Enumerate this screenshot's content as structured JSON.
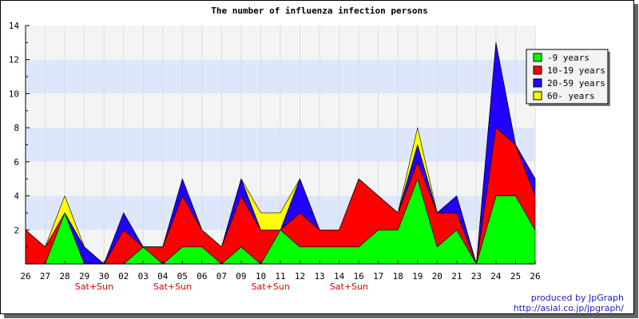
{
  "chart_data": {
    "type": "area",
    "stacked": true,
    "title": "The number of influenza infection persons",
    "categories": [
      "26",
      "27",
      "28",
      "29",
      "30",
      "02",
      "03",
      "04",
      "05",
      "06",
      "07",
      "09",
      "10",
      "11",
      "12",
      "13",
      "14",
      "16",
      "17",
      "18",
      "19",
      "20",
      "21",
      "23",
      "24",
      "25",
      "26"
    ],
    "weekend_markers": [
      {
        "after": "29",
        "label": "Sat+Sun"
      },
      {
        "after": "04",
        "label": "Sat+Sun"
      },
      {
        "after": "10",
        "label": "Sat+Sun"
      },
      {
        "after": "14",
        "label": "Sat+Sun"
      }
    ],
    "ylim": [
      0,
      14
    ],
    "yticks": [
      2,
      4,
      6,
      8,
      10,
      12,
      14
    ],
    "grid": true,
    "legend_position": "top-right",
    "series": [
      {
        "name": "-9 years",
        "color": "#00ff00",
        "values": [
          0,
          0,
          3,
          0,
          0,
          0,
          1,
          0,
          1,
          1,
          0,
          1,
          0,
          2,
          1,
          1,
          1,
          1,
          2,
          2,
          5,
          1,
          2,
          0,
          4,
          4,
          2
        ]
      },
      {
        "name": "10-19 years",
        "color": "#ff0000",
        "values": [
          2,
          1,
          0,
          0,
          0,
          2,
          0,
          1,
          3,
          1,
          1,
          3,
          2,
          0,
          2,
          1,
          1,
          4,
          2,
          1,
          1,
          2,
          1,
          0,
          4,
          3,
          2
        ]
      },
      {
        "name": "20-59 years",
        "color": "#2200ff",
        "values": [
          0,
          0,
          0,
          1,
          0,
          1,
          0,
          0,
          1,
          0,
          0,
          1,
          0,
          0,
          2,
          0,
          0,
          0,
          0,
          0,
          1,
          0,
          1,
          0,
          5,
          0,
          1
        ]
      },
      {
        "name": "60- years",
        "color": "#ffff00",
        "values": [
          0,
          0,
          1,
          0,
          0,
          0,
          0,
          0,
          0,
          0,
          0,
          0,
          1,
          1,
          0,
          0,
          0,
          0,
          0,
          0,
          1,
          0,
          0,
          0,
          0,
          0,
          0
        ]
      }
    ]
  },
  "credit": {
    "line1": "produced by JpGraph",
    "line2": "http://asial.co.jp/jpgraph/"
  }
}
